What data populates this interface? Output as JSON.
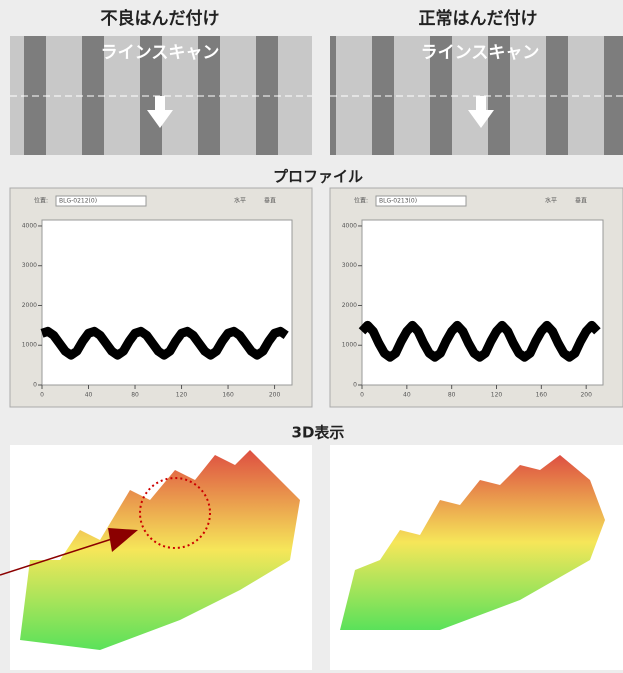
{
  "xray": {
    "titles": [
      "不良はんだ付け",
      "正常はんだ付け"
    ],
    "overlay": "ラインスキャン"
  },
  "profile": {
    "heading": "プロファイル",
    "panels": [
      {
        "type": "line",
        "field_label": "位置:",
        "field_value": "BLG-0212(0)",
        "options": [
          "水平",
          "垂直"
        ],
        "x": [
          0,
          5,
          10,
          15,
          20,
          25,
          30,
          35,
          40,
          45,
          50,
          55,
          60,
          65,
          70,
          75,
          80,
          85,
          90,
          95,
          100,
          105,
          110,
          115,
          120,
          125,
          130,
          135,
          140,
          145,
          150,
          155,
          160,
          165,
          170,
          175,
          180,
          185,
          190,
          195,
          200,
          205,
          210
        ],
        "values": [
          1300,
          1350,
          1250,
          1050,
          850,
          750,
          850,
          1100,
          1300,
          1350,
          1250,
          1050,
          850,
          750,
          850,
          1100,
          1300,
          1350,
          1250,
          1050,
          850,
          750,
          850,
          1100,
          1300,
          1350,
          1250,
          1050,
          850,
          750,
          850,
          1100,
          1300,
          1350,
          1250,
          1050,
          850,
          750,
          850,
          1100,
          1300,
          1350,
          1250
        ],
        "color": "#000000",
        "xlim": [
          0,
          215
        ],
        "ylim": [
          0,
          4150
        ],
        "xticks": [
          0,
          40,
          80,
          120,
          160,
          200
        ],
        "yticks": [
          0,
          1000,
          2000,
          3000,
          4000
        ]
      },
      {
        "type": "line",
        "field_label": "位置:",
        "field_value": "BLG-0213(0)",
        "options": [
          "水平",
          "垂直"
        ],
        "x": [
          0,
          5,
          10,
          15,
          20,
          25,
          30,
          35,
          40,
          45,
          50,
          55,
          60,
          65,
          70,
          75,
          80,
          85,
          90,
          95,
          100,
          105,
          110,
          115,
          120,
          125,
          130,
          135,
          140,
          145,
          150,
          155,
          160,
          165,
          170,
          175,
          180,
          185,
          190,
          195,
          200,
          205,
          210
        ],
        "values": [
          1350,
          1500,
          1350,
          1050,
          800,
          700,
          800,
          1100,
          1350,
          1500,
          1350,
          1050,
          800,
          700,
          800,
          1100,
          1350,
          1500,
          1350,
          1050,
          800,
          700,
          800,
          1100,
          1350,
          1500,
          1350,
          1050,
          800,
          700,
          800,
          1100,
          1350,
          1500,
          1350,
          1050,
          800,
          700,
          800,
          1100,
          1350,
          1500,
          1350
        ],
        "color": "#000000",
        "xlim": [
          0,
          215
        ],
        "ylim": [
          0,
          4150
        ],
        "xticks": [
          0,
          40,
          80,
          120,
          160,
          200
        ],
        "yticks": [
          0,
          1000,
          2000,
          3000,
          4000
        ]
      }
    ]
  },
  "view3d": {
    "heading": "3D表示"
  }
}
